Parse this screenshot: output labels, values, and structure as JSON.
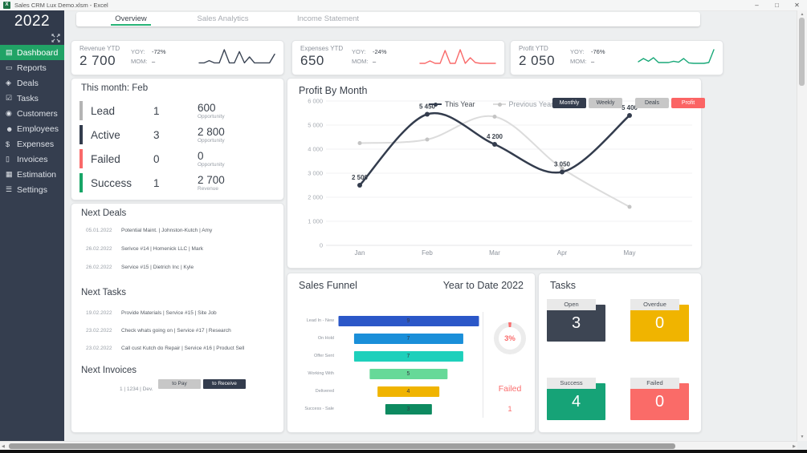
{
  "window": {
    "title": "Sales CRM Lux Demo.xlsm - Excel",
    "app_icon_letter": "X",
    "controls": {
      "minimize": "–",
      "restore": "□",
      "close": "✕"
    }
  },
  "sidebar": {
    "year": "2022",
    "items": [
      {
        "label": "Dashboard",
        "icon": "▤",
        "active": true
      },
      {
        "label": "Reports",
        "icon": "▭"
      },
      {
        "label": "Deals",
        "icon": "◈"
      },
      {
        "label": "Tasks",
        "icon": "☑"
      },
      {
        "label": "Customers",
        "icon": "◉"
      },
      {
        "label": "Employees",
        "icon": "☻"
      },
      {
        "label": "Expenses",
        "icon": "$"
      },
      {
        "label": "Invoices",
        "icon": "▯"
      },
      {
        "label": "Estimation",
        "icon": "▦"
      },
      {
        "label": "Settings",
        "icon": "☰"
      }
    ]
  },
  "tabs": [
    {
      "label": "Overview",
      "active": true
    },
    {
      "label": "Sales Analytics"
    },
    {
      "label": "Income Statement"
    }
  ],
  "kpi_labels": {
    "yoy": "YOY:",
    "mom": "MOM:"
  },
  "kpis": [
    {
      "title": "Revenue YTD",
      "value": "2 700",
      "yoy": "-72%",
      "mom": "–",
      "color": "#3a4454",
      "spark": [
        0.18,
        0.18,
        0.32,
        0.18,
        0.18,
        1.0,
        0.18,
        0.18,
        0.88,
        0.18,
        0.55,
        0.18,
        0.18,
        0.18,
        0.18,
        0.72
      ]
    },
    {
      "title": "Expenses YTD",
      "value": "650",
      "yoy": "-24%",
      "mom": "–",
      "color": "#f96a6a",
      "spark": [
        0.15,
        0.15,
        0.3,
        0.15,
        0.15,
        0.95,
        0.15,
        0.15,
        1.0,
        0.15,
        0.5,
        0.2,
        0.15,
        0.15,
        0.15,
        0.15
      ]
    },
    {
      "title": "Profit YTD",
      "value": "2 050",
      "yoy": "-76%",
      "mom": "–",
      "color": "#18a878",
      "spark": [
        0.25,
        0.45,
        0.28,
        0.5,
        0.2,
        0.2,
        0.2,
        0.28,
        0.22,
        0.45,
        0.18,
        0.15,
        0.15,
        0.15,
        0.2,
        1.0
      ]
    }
  ],
  "this_month": {
    "title": "This month: Feb",
    "rows": [
      {
        "label": "Lead",
        "count": "1",
        "value": "600",
        "value_label": "Opportunity",
        "color": "#b4b4b4"
      },
      {
        "label": "Active",
        "count": "3",
        "value": "2 800",
        "value_label": "Opportunity",
        "color": "#333c4d"
      },
      {
        "label": "Failed",
        "count": "0",
        "value": "0",
        "value_label": "Opportunity",
        "color": "#f96a6a"
      },
      {
        "label": "Success",
        "count": "1",
        "value": "2 700",
        "value_label": "Revenue",
        "color": "#18a567"
      }
    ]
  },
  "chart_data": [
    {
      "id": "profit_by_month",
      "type": "line",
      "title": "Profit By Month",
      "x": [
        "Jan",
        "Feb",
        "Mar",
        "Apr",
        "May"
      ],
      "series": [
        {
          "name": "This Year",
          "color": "#333c4d",
          "dot": "#333c4d",
          "values": [
            2500,
            5450,
            4200,
            3050,
            5400
          ],
          "labels": [
            "2 500",
            "5 450",
            "4 200",
            "3 050",
            "5 400"
          ]
        },
        {
          "name": "Previous Year",
          "color": "#dcdcdc",
          "dot": "#c4c4c4",
          "values": [
            4250,
            4400,
            5350,
            3200,
            1600
          ],
          "labels": []
        }
      ],
      "ylim": [
        0,
        6000
      ],
      "grid": true,
      "legend_position": "top",
      "yticks": [
        {
          "v": 6000,
          "label": "6 000"
        },
        {
          "v": 5000,
          "label": "5 000"
        },
        {
          "v": 4000,
          "label": "4 000"
        },
        {
          "v": 3000,
          "label": "3 000"
        },
        {
          "v": 2000,
          "label": "2 000"
        },
        {
          "v": 1000,
          "label": "1 000"
        },
        {
          "v": 0,
          "label": "0"
        }
      ],
      "buttons": [
        {
          "label": "Monthly",
          "style": "dark"
        },
        {
          "label": "Weekly",
          "style": "gray"
        },
        {
          "label": "Deals",
          "style": "gray",
          "gap_before": true
        },
        {
          "label": "Profit",
          "style": "red"
        }
      ]
    },
    {
      "id": "sales_funnel",
      "type": "bar",
      "orientation": "horizontal-centered",
      "title": "Sales Funnel",
      "subtitle": "Year to Date 2022",
      "categories": [
        "Lead In - New",
        "On Hold",
        "Offer Sent",
        "Working With",
        "Delivered",
        "Success - Sale"
      ],
      "values": [
        9,
        7,
        7,
        5,
        4,
        3
      ],
      "value_labels": [
        "9",
        "7",
        "7",
        "5",
        "4",
        "3"
      ],
      "colors": [
        "#2b57c8",
        "#1a8fd9",
        "#1ed0bb",
        "#66d998",
        "#f0b400",
        "#0d8a60"
      ],
      "gauge": {
        "percent": 3,
        "percent_label": "3%",
        "label": "Failed",
        "value": "1",
        "color": "#fa6d6d",
        "track": "#ececec"
      }
    }
  ],
  "next_deals": {
    "title": "Next Deals",
    "rows": [
      {
        "date": "05.01.2022",
        "text": "Potential Maint. | Johnston-Kutch | Amy"
      },
      {
        "date": "26.02.2022",
        "text": "Serivce #14 | Homenick LLC | Mark"
      },
      {
        "date": "26.02.2022",
        "text": "Service #15 | Dietrich Inc | Kyle"
      }
    ]
  },
  "next_tasks": {
    "title": "Next Tasks",
    "rows": [
      {
        "date": "19.02.2022",
        "text": "Provide Materials | Service #15 | Site Job"
      },
      {
        "date": "23.02.2022",
        "text": "Check whats going on | Service #17 | Research"
      },
      {
        "date": "23.02.2022",
        "text": "Call cust Kutch do Repair | Service #16 | Product Sell"
      }
    ]
  },
  "next_invoices": {
    "title": "Next Invoices",
    "buttons": [
      {
        "label": "to Pay",
        "style": "gray"
      },
      {
        "label": "to Receive",
        "style": "dark"
      }
    ],
    "row": "1 | 1234 | Dev."
  },
  "tasks_panel": {
    "title": "Tasks",
    "cards": [
      {
        "label": "Open",
        "value": "3",
        "color": "#3d4553"
      },
      {
        "label": "Overdue",
        "value": "0",
        "color": "#f0b400"
      },
      {
        "label": "Success",
        "value": "4",
        "color": "#16a377"
      },
      {
        "label": "Failed",
        "value": "0",
        "color": "#fa6b68"
      }
    ]
  },
  "scrollbars": {
    "up": "▲",
    "down": "▼",
    "left": "◀",
    "right": "▶"
  }
}
